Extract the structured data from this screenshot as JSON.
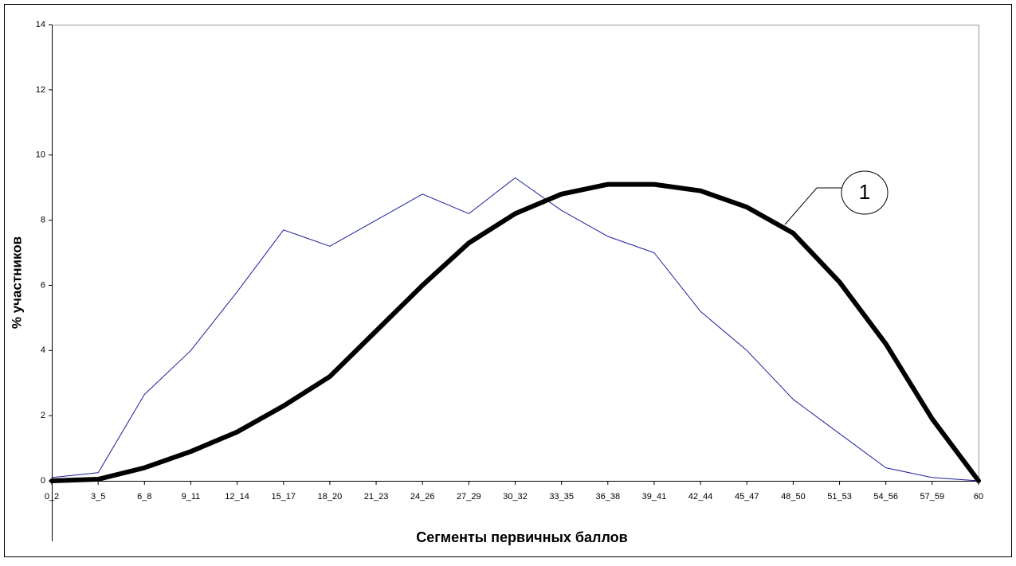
{
  "chart_data": {
    "type": "line",
    "ylabel": "% участников",
    "xlabel": "Сегменты первичных баллов",
    "categories": [
      "0_2",
      "3_5",
      "6_8",
      "9_11",
      "12_14",
      "15_17",
      "18_20",
      "21_23",
      "24_26",
      "27_29",
      "30_32",
      "33_35",
      "36_38",
      "39_41",
      "42_44",
      "45_47",
      "48_50",
      "51_53",
      "54_56",
      "57_59",
      "60"
    ],
    "series": [
      {
        "color": "#1c1c9c",
        "width": 1,
        "values": [
          0.1,
          0.25,
          2.65,
          4.0,
          5.8,
          7.7,
          7.2,
          8.0,
          8.8,
          8.2,
          9.3,
          8.3,
          7.5,
          7.0,
          5.2,
          4.0,
          2.5,
          1.45,
          0.4,
          0.1,
          0
        ]
      },
      {
        "color": "#000000",
        "width": 6,
        "values": [
          0,
          0.05,
          0.4,
          0.9,
          1.5,
          2.3,
          3.2,
          4.6,
          6.0,
          7.3,
          8.2,
          8.8,
          9.1,
          9.1,
          8.9,
          8.4,
          7.6,
          6.1,
          4.2,
          1.9,
          0
        ]
      }
    ],
    "annotations": [
      {
        "text": "1"
      }
    ],
    "ylim": [
      0,
      14
    ],
    "yticks": [
      0,
      2,
      4,
      6,
      8,
      10,
      12,
      14
    ],
    "grid": false
  }
}
